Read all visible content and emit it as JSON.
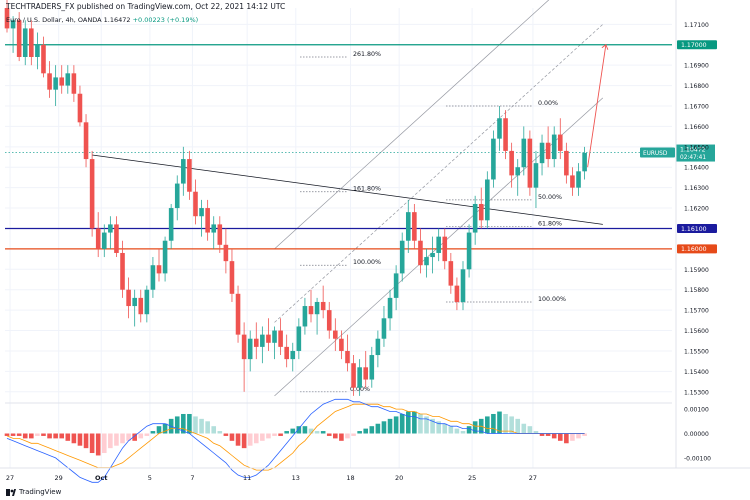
{
  "header": {
    "publisher": "TECHTRADERS_FX published on TradingView.com, Oct 22, 2021 14:12 UTC",
    "symbol": "Euro / U.S. Dollar, 4h, OANDA",
    "last": "1.16472",
    "change": "+0.00223 (+0.19%)"
  },
  "footer": {
    "brand": "TradingView"
  },
  "colors": {
    "up": "#26a69a",
    "down": "#ef5350",
    "green_level": "#089981",
    "blue_level": "#1b1b9e",
    "red_level": "#e64a19",
    "osc_up_strong": "#26a69a",
    "osc_up_weak": "#b2dfdb",
    "osc_down_strong": "#ef5350",
    "osc_down_weak": "#ffcdd2",
    "macd_line": "#2962ff",
    "signal_line": "#ff9800"
  },
  "chart_data": {
    "type": "candlestick",
    "y_range": [
      1.1525,
      1.1718
    ],
    "price_ticks": [
      "1.17100",
      "1.16900",
      "1.16800",
      "1.16700",
      "1.16600",
      "1.16500",
      "1.16400",
      "1.16300",
      "1.16200",
      "1.15900",
      "1.15800",
      "1.15700",
      "1.15600",
      "1.15500",
      "1.15400",
      "1.15300"
    ],
    "x_ticks": [
      "27",
      "29",
      "Oct",
      "5",
      "7",
      "11",
      "13",
      "18",
      "20",
      "25",
      "27"
    ],
    "horizontal_levels": [
      {
        "price": 1.17,
        "label": "1.17000",
        "color": "green_level"
      },
      {
        "price": 1.161,
        "label": "1.16100",
        "color": "blue_level"
      },
      {
        "price": 1.16,
        "label": "1.16000",
        "color": "red_level"
      }
    ],
    "price_label": {
      "symbol": "EURUSD",
      "price": "1.16472",
      "countdown": "02:47:41"
    },
    "fib_labels": [
      "261.80%",
      "161.80%",
      "100.00%",
      "0.00%",
      "0.00%",
      "50.00%",
      "61.80%",
      "100.00%"
    ],
    "candles_ohlc": [
      [
        1.1718,
        1.1722,
        1.1706,
        1.1708
      ],
      [
        1.1708,
        1.1714,
        1.1696,
        1.1712
      ],
      [
        1.1712,
        1.1716,
        1.1692,
        1.1694
      ],
      [
        1.1694,
        1.1712,
        1.169,
        1.1708
      ],
      [
        1.1708,
        1.1712,
        1.169,
        1.1694
      ],
      [
        1.1694,
        1.1706,
        1.1688,
        1.17
      ],
      [
        1.17,
        1.1704,
        1.1684,
        1.1686
      ],
      [
        1.1686,
        1.1692,
        1.1674,
        1.1678
      ],
      [
        1.1678,
        1.169,
        1.167,
        1.1684
      ],
      [
        1.1684,
        1.169,
        1.1676,
        1.168
      ],
      [
        1.168,
        1.169,
        1.1676,
        1.1686
      ],
      [
        1.1686,
        1.169,
        1.1672,
        1.1676
      ],
      [
        1.1676,
        1.168,
        1.166,
        1.1662
      ],
      [
        1.1662,
        1.1666,
        1.164,
        1.1644
      ],
      [
        1.1644,
        1.1648,
        1.1606,
        1.161
      ],
      [
        1.161,
        1.1618,
        1.1596,
        1.16
      ],
      [
        1.16,
        1.1612,
        1.1596,
        1.1608
      ],
      [
        1.1608,
        1.1616,
        1.16,
        1.1612
      ],
      [
        1.1612,
        1.1616,
        1.1596,
        1.1598
      ],
      [
        1.1598,
        1.1604,
        1.1576,
        1.158
      ],
      [
        1.158,
        1.1586,
        1.1566,
        1.1572
      ],
      [
        1.1572,
        1.158,
        1.1562,
        1.1576
      ],
      [
        1.1576,
        1.158,
        1.1564,
        1.1568
      ],
      [
        1.1568,
        1.1582,
        1.1564,
        1.158
      ],
      [
        1.158,
        1.1596,
        1.1576,
        1.1592
      ],
      [
        1.1592,
        1.16,
        1.1584,
        1.1588
      ],
      [
        1.1588,
        1.1606,
        1.1584,
        1.1604
      ],
      [
        1.1604,
        1.1622,
        1.16,
        1.162
      ],
      [
        1.162,
        1.1636,
        1.1614,
        1.1632
      ],
      [
        1.1632,
        1.165,
        1.1626,
        1.1644
      ],
      [
        1.1644,
        1.1648,
        1.1624,
        1.1628
      ],
      [
        1.1628,
        1.1634,
        1.1612,
        1.1616
      ],
      [
        1.1616,
        1.1624,
        1.1606,
        1.162
      ],
      [
        1.162,
        1.1624,
        1.1604,
        1.1608
      ],
      [
        1.1608,
        1.1616,
        1.16,
        1.1612
      ],
      [
        1.1612,
        1.1616,
        1.1598,
        1.1602
      ],
      [
        1.1602,
        1.161,
        1.1588,
        1.1594
      ],
      [
        1.1594,
        1.16,
        1.1574,
        1.1578
      ],
      [
        1.1578,
        1.1582,
        1.1554,
        1.1558
      ],
      [
        1.1558,
        1.1564,
        1.153,
        1.1546
      ],
      [
        1.1546,
        1.156,
        1.154,
        1.1556
      ],
      [
        1.1556,
        1.1564,
        1.1546,
        1.1552
      ],
      [
        1.1552,
        1.1562,
        1.1544,
        1.1558
      ],
      [
        1.1558,
        1.1566,
        1.155,
        1.1554
      ],
      [
        1.1554,
        1.1562,
        1.1546,
        1.156
      ],
      [
        1.156,
        1.1566,
        1.1548,
        1.1552
      ],
      [
        1.1552,
        1.1558,
        1.1542,
        1.1546
      ],
      [
        1.1546,
        1.1554,
        1.154,
        1.155
      ],
      [
        1.155,
        1.1566,
        1.1546,
        1.1562
      ],
      [
        1.1562,
        1.1576,
        1.1558,
        1.1572
      ],
      [
        1.1572,
        1.158,
        1.1564,
        1.1568
      ],
      [
        1.1568,
        1.1576,
        1.1558,
        1.1574
      ],
      [
        1.1574,
        1.1582,
        1.1566,
        1.157
      ],
      [
        1.157,
        1.1574,
        1.1556,
        1.156
      ],
      [
        1.156,
        1.1566,
        1.155,
        1.1556
      ],
      [
        1.1556,
        1.156,
        1.1546,
        1.155
      ],
      [
        1.155,
        1.1558,
        1.154,
        1.1544
      ],
      [
        1.1544,
        1.1548,
        1.1528,
        1.1532
      ],
      [
        1.1532,
        1.1546,
        1.1528,
        1.1542
      ],
      [
        1.1542,
        1.155,
        1.1532,
        1.1536
      ],
      [
        1.1536,
        1.1552,
        1.1532,
        1.1548
      ],
      [
        1.1548,
        1.156,
        1.1542,
        1.1556
      ],
      [
        1.1556,
        1.1572,
        1.1552,
        1.1566
      ],
      [
        1.1566,
        1.158,
        1.156,
        1.1576
      ],
      [
        1.1576,
        1.1592,
        1.157,
        1.1588
      ],
      [
        1.1588,
        1.1608,
        1.1584,
        1.1604
      ],
      [
        1.1604,
        1.1624,
        1.1598,
        1.1618
      ],
      [
        1.1618,
        1.1622,
        1.16,
        1.1604
      ],
      [
        1.1604,
        1.161,
        1.1588,
        1.1592
      ],
      [
        1.1592,
        1.16,
        1.1586,
        1.1596
      ],
      [
        1.1596,
        1.1606,
        1.1588,
        1.1598
      ],
      [
        1.1598,
        1.161,
        1.1594,
        1.1606
      ],
      [
        1.1606,
        1.161,
        1.159,
        1.1594
      ],
      [
        1.1594,
        1.1598,
        1.1578,
        1.1582
      ],
      [
        1.1582,
        1.1586,
        1.157,
        1.1574
      ],
      [
        1.1574,
        1.1594,
        1.157,
        1.159
      ],
      [
        1.159,
        1.1612,
        1.1586,
        1.1608
      ],
      [
        1.1608,
        1.1626,
        1.1602,
        1.1622
      ],
      [
        1.1622,
        1.163,
        1.161,
        1.1614
      ],
      [
        1.1614,
        1.1638,
        1.161,
        1.1634
      ],
      [
        1.1634,
        1.1658,
        1.163,
        1.1654
      ],
      [
        1.1654,
        1.167,
        1.1648,
        1.1664
      ],
      [
        1.1664,
        1.1668,
        1.1644,
        1.1648
      ],
      [
        1.1648,
        1.1652,
        1.163,
        1.1636
      ],
      [
        1.1636,
        1.1644,
        1.1626,
        1.164
      ],
      [
        1.164,
        1.166,
        1.1636,
        1.1654
      ],
      [
        1.1654,
        1.1658,
        1.1626,
        1.163
      ],
      [
        1.163,
        1.1648,
        1.162,
        1.1642
      ],
      [
        1.1642,
        1.1656,
        1.1636,
        1.1652
      ],
      [
        1.1652,
        1.166,
        1.164,
        1.1644
      ],
      [
        1.1644,
        1.166,
        1.164,
        1.1656
      ],
      [
        1.1656,
        1.1664,
        1.1644,
        1.1648
      ],
      [
        1.1648,
        1.1652,
        1.1632,
        1.1636
      ],
      [
        1.1636,
        1.164,
        1.1626,
        1.163
      ],
      [
        1.163,
        1.1642,
        1.1626,
        1.1638
      ],
      [
        1.1638,
        1.165,
        1.1634,
        1.1647
      ]
    ],
    "x_ticks_at_bar": [
      0.5,
      8.5,
      15.5,
      23.5,
      30.5,
      39.5,
      47.5,
      56.5,
      64.5,
      76.5,
      86.5
    ],
    "trendline": {
      "from": {
        "bar": 14.0,
        "price": 1.1646
      },
      "to": {
        "bar": 98.0,
        "price": 1.1612
      }
    },
    "channel": [
      {
        "from": {
          "bar": 44.0,
          "price": 1.16
        },
        "to": {
          "bar": 98.0,
          "price": 1.1746
        },
        "style": "solid"
      },
      {
        "from": {
          "bar": 44.0,
          "price": 1.1564
        },
        "to": {
          "bar": 98.0,
          "price": 1.171
        },
        "style": "dashed"
      },
      {
        "from": {
          "bar": 44.0,
          "price": 1.1528
        },
        "to": {
          "bar": 98.0,
          "price": 1.1674
        },
        "style": "solid"
      }
    ],
    "projection_arrow": {
      "from": {
        "bar": 95.5,
        "price": 1.164
      },
      "to": {
        "bar": 98.5,
        "price": 1.17
      }
    },
    "oscillator": {
      "y_ticks": [
        "0.00100",
        "0.00000",
        "-0.00100"
      ],
      "hist": [
        -0.0001,
        -0.0001,
        -0.0001,
        -0.0002,
        -0.0002,
        -0.0001,
        -0.0001,
        -0.0002,
        -0.0002,
        -0.0002,
        -0.0003,
        -0.0004,
        -0.0005,
        -0.0006,
        -0.0008,
        -0.0009,
        -0.0008,
        -0.0006,
        -0.0005,
        -0.0004,
        -0.0003,
        -0.0003,
        -0.0002,
        -0.0001,
        0.0001,
        0.0003,
        0.0004,
        0.0006,
        0.0007,
        0.0008,
        0.0008,
        0.0007,
        0.0006,
        0.0005,
        0.0003,
        0.0001,
        -0.0001,
        -0.0003,
        -0.0005,
        -0.0006,
        -0.0005,
        -0.0004,
        -0.0003,
        -0.0002,
        -0.0001,
        -0.0001,
        0.0001,
        0.0002,
        0.0003,
        0.0003,
        0.0002,
        0.0001,
        0.0001,
        -0.0001,
        -0.0002,
        -0.0003,
        -0.0002,
        -0.0001,
        0.0001,
        0.0002,
        0.0003,
        0.0004,
        0.0005,
        0.0006,
        0.0007,
        0.0008,
        0.0009,
        0.0009,
        0.0008,
        0.0007,
        0.0006,
        0.0005,
        0.0004,
        0.0003,
        0.0002,
        0.0001,
        0.0003,
        0.0005,
        0.0006,
        0.0007,
        0.0008,
        0.0009,
        0.0008,
        0.0007,
        0.0006,
        0.0004,
        0.0003,
        0.0001,
        -0.0001,
        -0.0001,
        -0.0002,
        -0.0003,
        -0.0004,
        -0.0003,
        -0.0002,
        -0.0001
      ],
      "macd": [
        -0.0002,
        -0.0003,
        -0.0004,
        -0.0005,
        -0.0006,
        -0.0007,
        -0.0008,
        -0.0009,
        -0.001,
        -0.0012,
        -0.0014,
        -0.0016,
        -0.0018,
        -0.0019,
        -0.002,
        -0.002,
        -0.0018,
        -0.0014,
        -0.001,
        -0.0006,
        -0.0003,
        -0.0001,
        0.0001,
        0.0003,
        0.0004,
        0.0004,
        0.0004,
        0.0003,
        0.0002,
        0.0001,
        0.0,
        -0.0002,
        -0.0004,
        -0.0006,
        -0.0008,
        -0.001,
        -0.0012,
        -0.0015,
        -0.0017,
        -0.0018,
        -0.0018,
        -0.0017,
        -0.0015,
        -0.0013,
        -0.001,
        -0.0007,
        -0.0004,
        -0.0001,
        0.0002,
        0.0005,
        0.0008,
        0.001,
        0.0012,
        0.0013,
        0.0014,
        0.0014,
        0.0014,
        0.0013,
        0.0013,
        0.0012,
        0.0011,
        0.0011,
        0.001,
        0.0009,
        0.0009,
        0.0008,
        0.0007,
        0.0007,
        0.0006,
        0.0006,
        0.0005,
        0.0004,
        0.0004,
        0.0003,
        0.0003,
        0.0002,
        0.0002,
        0.0001,
        0.0001,
        0.0,
        0.0,
        0.0,
        0.0,
        0.0,
        0.0,
        0.0,
        0.0,
        0.0,
        0.0,
        0.0,
        0.0,
        0.0,
        0.0,
        0.0,
        0.0,
        0.0
      ],
      "signal": [
        -0.0001,
        -0.0002,
        -0.0002,
        -0.0003,
        -0.0004,
        -0.0004,
        -0.0005,
        -0.0006,
        -0.0007,
        -0.0008,
        -0.0009,
        -0.001,
        -0.0011,
        -0.0012,
        -0.0013,
        -0.0014,
        -0.0014,
        -0.0014,
        -0.0013,
        -0.0012,
        -0.001,
        -0.0008,
        -0.0006,
        -0.0004,
        -0.0002,
        0.0,
        0.0001,
        0.0002,
        0.0002,
        0.0002,
        0.0001,
        0.0,
        -0.0001,
        -0.0002,
        -0.0004,
        -0.0005,
        -0.0007,
        -0.0009,
        -0.0011,
        -0.0013,
        -0.0014,
        -0.0015,
        -0.0015,
        -0.0015,
        -0.0014,
        -0.0012,
        -0.001,
        -0.0008,
        -0.0005,
        -0.0003,
        0.0,
        0.0003,
        0.0005,
        0.0007,
        0.0009,
        0.001,
        0.0011,
        0.0012,
        0.0012,
        0.0012,
        0.0012,
        0.0012,
        0.0011,
        0.0011,
        0.001,
        0.001,
        0.0009,
        0.0009,
        0.0008,
        0.0008,
        0.0007,
        0.0007,
        0.0006,
        0.0005,
        0.0005,
        0.0004,
        0.0004,
        0.0003,
        0.0003,
        0.0002,
        0.0002,
        0.0001,
        0.0001,
        0.0001,
        0.0,
        0.0,
        0.0,
        0.0,
        0.0,
        0.0,
        0.0,
        0.0,
        0.0,
        0.0,
        0.0,
        0.0
      ]
    }
  }
}
